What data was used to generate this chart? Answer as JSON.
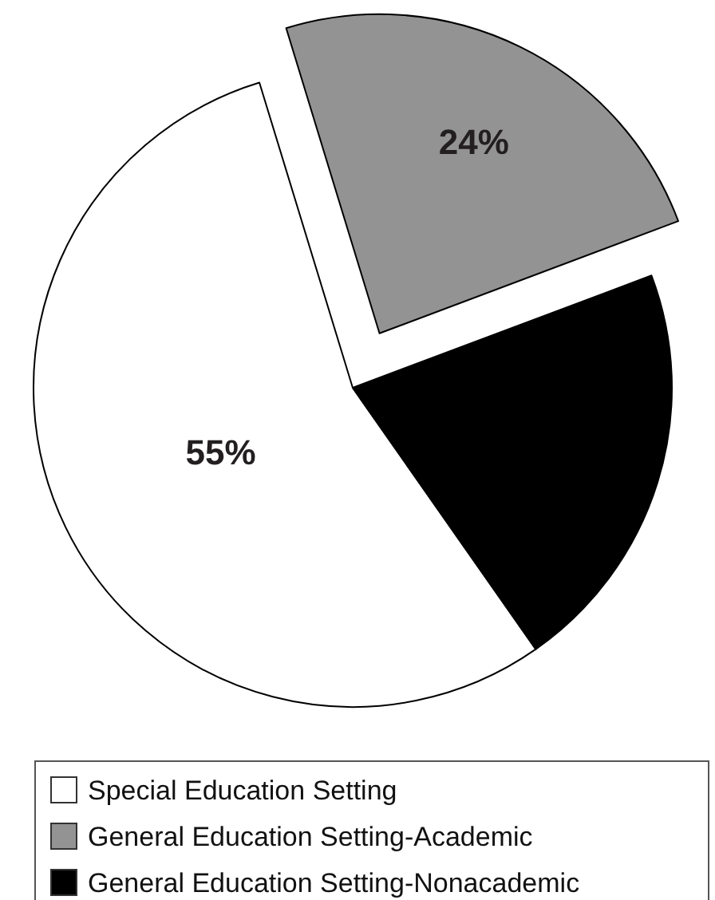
{
  "chart_data": {
    "type": "pie",
    "categories": [
      "Special Education Setting",
      "General Education Setting-Academic",
      "General Education Setting-Nonacademic"
    ],
    "values": [
      55,
      24,
      21
    ],
    "colors": [
      "#ffffff",
      "#939393",
      "#000000"
    ],
    "value_labels": [
      "55%",
      "24%",
      null
    ],
    "legend": "bottom"
  }
}
